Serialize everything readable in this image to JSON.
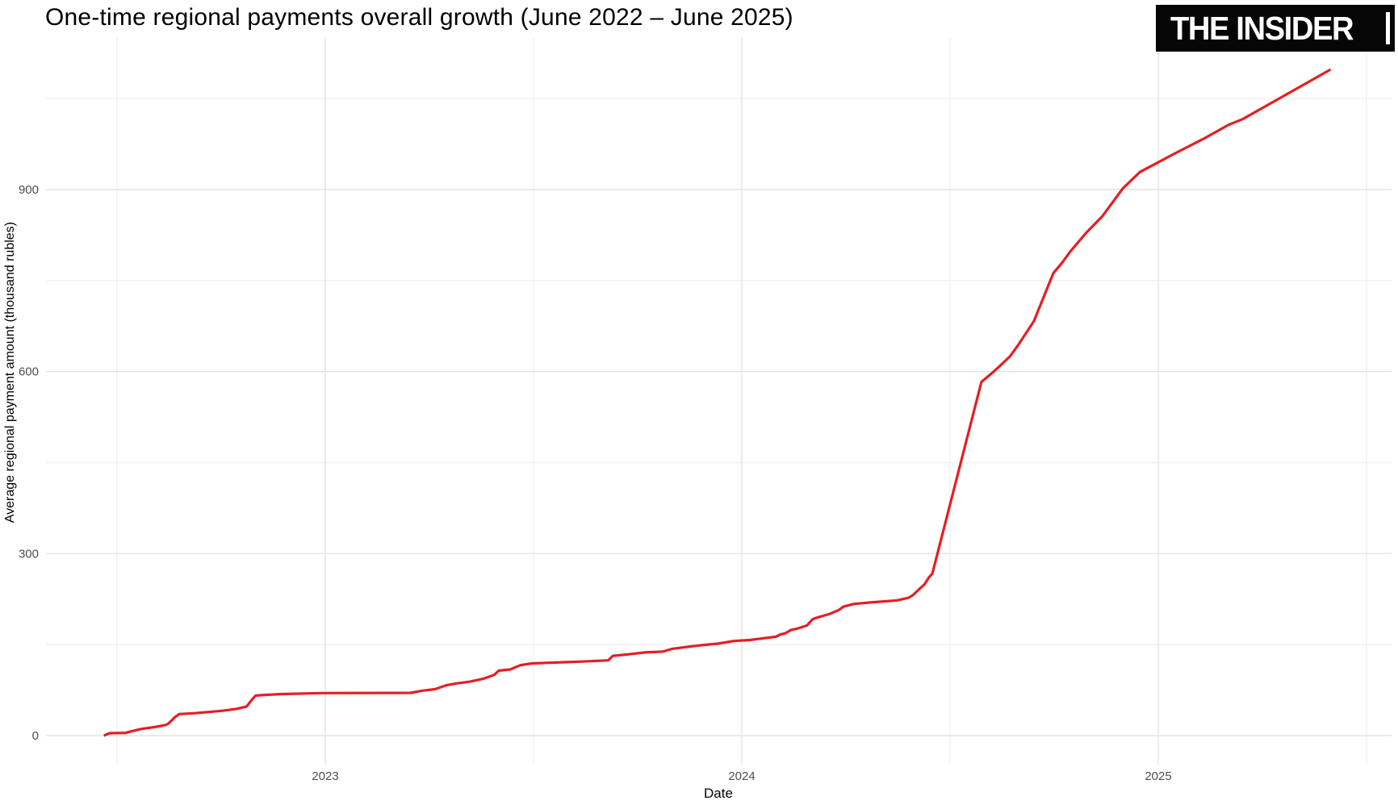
{
  "header": {
    "logo_text": "THE INSIDER"
  },
  "colors": {
    "background": "#ffffff",
    "line": "#e61e23",
    "grid_major": "#e4e4e4",
    "grid_minor": "#f1f1f1",
    "tick_label": "#4d4d4d",
    "axis_title": "#000000",
    "title_text": "#000000",
    "logo_bg": "#060606",
    "logo_fg": "#ffffff"
  },
  "chart_data": {
    "type": "line",
    "title": "One-time regional payments overall growth (June 2022 – June 2025)",
    "xlabel": "Date",
    "ylabel": "Average regional payment amount (thousand rubles)",
    "x_tick_years": [
      2023,
      2024,
      2025
    ],
    "y_ticks": [
      0,
      300,
      600,
      900
    ],
    "x_range_decimal_years": [
      2022.33,
      2025.56
    ],
    "y_range": [
      -48,
      1150
    ],
    "grid": {
      "major": true,
      "minor": true,
      "minor_x_half_years": true,
      "minor_y_step": 150
    },
    "legend": "none",
    "units": "thousand rubles",
    "series": [
      {
        "points": [
          [
            "2022-06-21",
            0
          ],
          [
            "2022-06-26",
            4
          ],
          [
            "2022-07-10",
            4.5
          ],
          [
            "2022-07-15",
            7
          ],
          [
            "2022-07-24",
            11
          ],
          [
            "2022-08-04",
            14
          ],
          [
            "2022-08-13",
            17
          ],
          [
            "2022-08-16",
            19
          ],
          [
            "2022-08-20",
            26
          ],
          [
            "2022-08-22",
            30
          ],
          [
            "2022-08-26",
            35.5
          ],
          [
            "2022-09-09",
            37
          ],
          [
            "2022-09-21",
            39
          ],
          [
            "2022-10-03",
            41
          ],
          [
            "2022-10-15",
            44
          ],
          [
            "2022-10-24",
            48
          ],
          [
            "2022-10-27",
            55
          ],
          [
            "2022-10-30",
            62
          ],
          [
            "2022-11-01",
            66
          ],
          [
            "2022-11-08",
            67
          ],
          [
            "2022-11-24",
            68.5
          ],
          [
            "2022-12-28",
            70
          ],
          [
            "2023-03-17",
            70.5
          ],
          [
            "2023-03-27",
            74
          ],
          [
            "2023-04-07",
            76.5
          ],
          [
            "2023-04-17",
            83
          ],
          [
            "2023-04-26",
            86
          ],
          [
            "2023-05-08",
            89
          ],
          [
            "2023-05-20",
            94
          ],
          [
            "2023-05-29",
            100
          ],
          [
            "2023-06-02",
            107
          ],
          [
            "2023-06-12",
            109
          ],
          [
            "2023-06-21",
            116
          ],
          [
            "2023-07-01",
            119
          ],
          [
            "2023-07-22",
            120.5
          ],
          [
            "2023-08-14",
            122
          ],
          [
            "2023-09-06",
            124
          ],
          [
            "2023-09-10",
            131.5
          ],
          [
            "2023-09-24",
            134
          ],
          [
            "2023-10-08",
            137
          ],
          [
            "2023-10-24",
            138.5
          ],
          [
            "2023-11-01",
            143
          ],
          [
            "2023-11-13",
            146
          ],
          [
            "2023-11-27",
            149
          ],
          [
            "2023-12-11",
            151.5
          ],
          [
            "2023-12-25",
            156
          ],
          [
            "2024-01-08",
            157.5
          ],
          [
            "2024-01-20",
            160.5
          ],
          [
            "2024-01-31",
            163
          ],
          [
            "2024-02-04",
            167
          ],
          [
            "2024-02-08",
            168.5
          ],
          [
            "2024-02-13",
            174
          ],
          [
            "2024-02-18",
            176
          ],
          [
            "2024-02-27",
            181.5
          ],
          [
            "2024-03-04",
            191.5
          ],
          [
            "2024-03-07",
            194
          ],
          [
            "2024-03-19",
            200.5
          ],
          [
            "2024-03-27",
            207
          ],
          [
            "2024-03-31",
            212.5
          ],
          [
            "2024-04-05",
            215
          ],
          [
            "2024-04-09",
            217
          ],
          [
            "2024-04-24",
            219.5
          ],
          [
            "2024-05-08",
            221.5
          ],
          [
            "2024-05-17",
            223
          ],
          [
            "2024-05-22",
            225
          ],
          [
            "2024-05-27",
            227
          ],
          [
            "2024-05-31",
            231.5
          ],
          [
            "2024-06-05",
            240.5
          ],
          [
            "2024-06-10",
            249
          ],
          [
            "2024-06-14",
            260.5
          ],
          [
            "2024-06-17",
            267
          ],
          [
            "2024-07-30",
            583
          ],
          [
            "2024-08-08",
            597
          ],
          [
            "2024-08-15",
            609
          ],
          [
            "2024-08-24",
            625
          ],
          [
            "2024-08-31",
            643
          ],
          [
            "2024-09-14",
            683
          ],
          [
            "2024-10-01",
            762
          ],
          [
            "2024-10-09",
            780
          ],
          [
            "2024-10-16",
            798
          ],
          [
            "2024-10-30",
            829
          ],
          [
            "2024-11-13",
            856
          ],
          [
            "2024-12-01",
            902
          ],
          [
            "2024-12-16",
            929
          ],
          [
            "2025-01-01",
            945
          ],
          [
            "2025-01-16",
            960
          ],
          [
            "2025-02-09",
            983
          ],
          [
            "2025-03-04",
            1007
          ],
          [
            "2025-03-16",
            1016
          ],
          [
            "2025-06-01",
            1098
          ]
        ]
      }
    ]
  }
}
